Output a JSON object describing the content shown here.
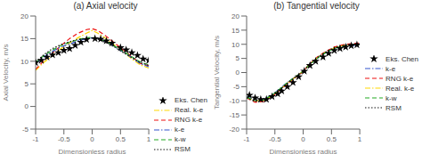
{
  "chart_data": [
    {
      "type": "line",
      "title": "(a)  Axial velocity",
      "x_label": "Dimensionless radius",
      "y_label": "Axial Velocity, m/s",
      "xlim": [
        -1,
        1
      ],
      "ylim": [
        -5,
        20
      ],
      "xticks": [
        -1,
        -0.5,
        0,
        0.5,
        1
      ],
      "yticks": [
        -5,
        0,
        5,
        10,
        15,
        20
      ],
      "grid": false,
      "legend": "lower right",
      "series": [
        {
          "name": "Eks. Chen",
          "type": "scatter",
          "marker": "star",
          "color": "#000000",
          "x": [
            -1.0,
            -0.9,
            -0.8,
            -0.7,
            -0.6,
            -0.5,
            -0.4,
            -0.3,
            -0.2,
            -0.1,
            0.05,
            0.15,
            0.25,
            0.35,
            0.5,
            0.6,
            0.7,
            0.8,
            0.9,
            1.0
          ],
          "values": [
            9.7,
            10.2,
            10.9,
            11.4,
            11.9,
            12.4,
            12.8,
            13.5,
            14.2,
            14.8,
            15.0,
            14.9,
            14.5,
            14.0,
            13.0,
            12.5,
            11.9,
            11.3,
            10.5,
            10.2
          ]
        },
        {
          "name": "Real. k-e",
          "type": "line",
          "line_style": "dashdot",
          "color": "#FFD700",
          "x": [
            -1.0,
            -0.85,
            -0.7,
            -0.55,
            -0.4,
            -0.25,
            -0.1,
            0.0,
            0.1,
            0.25,
            0.4,
            0.55,
            0.7,
            0.85,
            1.0
          ],
          "values": [
            8.0,
            9.8,
            11.2,
            12.8,
            14.0,
            15.2,
            16.2,
            16.8,
            16.2,
            15.0,
            13.5,
            12.0,
            10.5,
            9.2,
            8.5
          ]
        },
        {
          "name": "RNG k-e",
          "type": "line",
          "line_style": "dashed",
          "color": "#EE1111",
          "x": [
            -1.0,
            -0.85,
            -0.7,
            -0.55,
            -0.4,
            -0.25,
            -0.1,
            0.0,
            0.1,
            0.25,
            0.4,
            0.55,
            0.7,
            0.85,
            1.0
          ],
          "values": [
            8.2,
            10.2,
            11.8,
            13.5,
            15.0,
            16.2,
            17.0,
            17.2,
            16.8,
            15.5,
            14.0,
            12.5,
            11.0,
            9.5,
            9.0
          ]
        },
        {
          "name": "k-e",
          "type": "line",
          "line_style": "dashdot",
          "color": "#3355CC",
          "x": [
            -1.0,
            -0.85,
            -0.7,
            -0.55,
            -0.4,
            -0.25,
            -0.1,
            0.0,
            0.1,
            0.25,
            0.4,
            0.55,
            0.7,
            0.85,
            1.0
          ],
          "values": [
            9.5,
            11.0,
            12.2,
            13.2,
            13.8,
            14.5,
            15.0,
            15.2,
            15.0,
            14.3,
            13.2,
            12.0,
            10.8,
            9.5,
            8.8
          ]
        },
        {
          "name": "k-w",
          "type": "line",
          "line_style": "dashed",
          "color": "#22AA22",
          "x": [
            -1.0,
            -0.85,
            -0.7,
            -0.55,
            -0.4,
            -0.25,
            -0.1,
            0.0,
            0.1,
            0.25,
            0.4,
            0.55,
            0.7,
            0.85,
            1.0
          ],
          "values": [
            9.7,
            11.3,
            12.5,
            13.5,
            14.2,
            14.8,
            15.2,
            15.3,
            15.0,
            14.3,
            13.3,
            12.2,
            11.0,
            9.8,
            9.2
          ]
        },
        {
          "name": "RSM",
          "type": "line",
          "line_style": "dotted",
          "color": "#111111",
          "x": [
            -1.0,
            -0.85,
            -0.7,
            -0.55,
            -0.4,
            -0.25,
            -0.1,
            0.0,
            0.1,
            0.25,
            0.4,
            0.55,
            0.7,
            0.85,
            1.0
          ],
          "values": [
            9.8,
            11.5,
            12.8,
            13.7,
            14.3,
            14.8,
            15.0,
            15.1,
            14.9,
            14.1,
            13.1,
            11.9,
            10.8,
            9.7,
            9.1
          ]
        }
      ]
    },
    {
      "type": "line",
      "title": "(b) Tangential velocity",
      "x_label": "Dimensionless radius",
      "y_label": "Tangential Velocity, m/s",
      "xlim": [
        -1,
        1
      ],
      "ylim": [
        -20,
        20
      ],
      "xticks": [
        -1,
        -0.5,
        0,
        0.5,
        1
      ],
      "yticks": [
        -20,
        -15,
        -10,
        -5,
        0,
        5,
        10,
        15,
        20
      ],
      "grid": false,
      "legend": "center right",
      "series": [
        {
          "name": "Eks. Chen",
          "type": "scatter",
          "marker": "star",
          "color": "#000000",
          "x": [
            -0.95,
            -0.85,
            -0.75,
            -0.65,
            -0.55,
            -0.45,
            -0.38,
            -0.28,
            -0.18,
            -0.08,
            0.02,
            0.12,
            0.22,
            0.35,
            0.45,
            0.55,
            0.65,
            0.75,
            0.85,
            0.95
          ],
          "values": [
            -8.0,
            -9.0,
            -9.5,
            -9.5,
            -8.5,
            -7.5,
            -6.5,
            -5.0,
            -3.5,
            -1.5,
            0.5,
            2.5,
            4.0,
            5.5,
            6.8,
            7.8,
            8.5,
            9.0,
            9.5,
            9.8
          ]
        },
        {
          "name": "k-e",
          "type": "line",
          "line_style": "dashdot",
          "color": "#3355CC",
          "x": [
            -1.0,
            -0.85,
            -0.7,
            -0.55,
            -0.4,
            -0.25,
            -0.1,
            0.0,
            0.1,
            0.25,
            0.4,
            0.55,
            0.7,
            0.85,
            1.0
          ],
          "values": [
            -8.5,
            -9.8,
            -9.5,
            -8.0,
            -5.5,
            -3.0,
            -1.0,
            0.5,
            2.5,
            5.0,
            7.0,
            8.5,
            9.2,
            9.5,
            9.8
          ]
        },
        {
          "name": "RNG k-e",
          "type": "line",
          "line_style": "dashed",
          "color": "#EE1111",
          "x": [
            -1.0,
            -0.85,
            -0.7,
            -0.55,
            -0.4,
            -0.25,
            -0.1,
            0.0,
            0.1,
            0.25,
            0.4,
            0.55,
            0.7,
            0.85,
            1.0
          ],
          "values": [
            -9.0,
            -10.5,
            -10.2,
            -8.5,
            -6.0,
            -3.5,
            -1.2,
            0.3,
            2.8,
            5.5,
            7.5,
            9.0,
            9.8,
            10.2,
            10.5
          ]
        },
        {
          "name": "Real. k-e",
          "type": "line",
          "line_style": "dashdot",
          "color": "#FFD700",
          "x": [
            -1.0,
            -0.85,
            -0.7,
            -0.55,
            -0.4,
            -0.25,
            -0.1,
            0.0,
            0.1,
            0.25,
            0.4,
            0.55,
            0.7,
            0.85,
            1.0
          ],
          "values": [
            -8.8,
            -10.0,
            -9.8,
            -8.2,
            -5.8,
            -3.2,
            -1.0,
            0.5,
            2.6,
            5.2,
            7.2,
            8.7,
            9.5,
            9.8,
            10.0
          ]
        },
        {
          "name": "k-w",
          "type": "line",
          "line_style": "dashed",
          "color": "#22AA22",
          "x": [
            -1.0,
            -0.85,
            -0.7,
            -0.55,
            -0.4,
            -0.25,
            -0.1,
            0.0,
            0.1,
            0.25,
            0.4,
            0.55,
            0.7,
            0.85,
            1.0
          ],
          "values": [
            -8.7,
            -10.0,
            -9.7,
            -8.0,
            -5.6,
            -3.1,
            -1.0,
            0.5,
            2.6,
            5.1,
            7.1,
            8.6,
            9.3,
            9.7,
            10.0
          ]
        },
        {
          "name": "RSM",
          "type": "line",
          "line_style": "dotted",
          "color": "#111111",
          "x": [
            -1.0,
            -0.85,
            -0.7,
            -0.55,
            -0.4,
            -0.25,
            -0.1,
            0.0,
            0.1,
            0.25,
            0.4,
            0.55,
            0.7,
            0.85,
            1.0
          ],
          "values": [
            -9.0,
            -10.2,
            -10.0,
            -8.3,
            -5.9,
            -3.3,
            -1.1,
            0.4,
            2.7,
            5.3,
            7.3,
            8.8,
            9.6,
            10.0,
            10.2
          ]
        }
      ]
    }
  ]
}
